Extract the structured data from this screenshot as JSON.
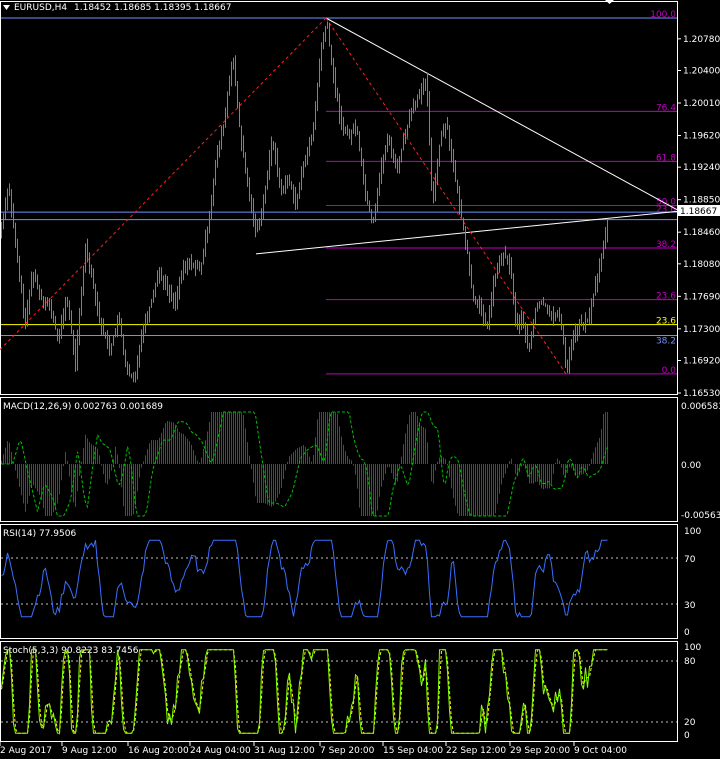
{
  "colors": {
    "background": "#000000",
    "grid": "#ffffff",
    "candle": "#3cb043",
    "fib_main": "#c000c0",
    "fib_label": "#c000c0",
    "trendline": "#ffffff",
    "blue_line": "#6f8fff",
    "yellow_line": "#ffff00",
    "red_dash": "#ff2020",
    "macd_hist": "#b02020",
    "macd_signal": "#00c000",
    "rsi_line": "#3a6fff",
    "stoch_main": "#80ff00",
    "stoch_signal": "#ffff00",
    "current_price_bg": "#ffffff",
    "current_price_fg": "#000000"
  },
  "header": {
    "symbol": "EURUSD,H4",
    "ohlc": "1.18452 1.18685 1.18395 1.18667"
  },
  "price_axis": {
    "ticks": [
      "1.20780",
      "1.20400",
      "1.20010",
      "1.19620",
      "1.19240",
      "1.18850",
      "1.18460",
      "1.18080",
      "1.17690",
      "1.17300",
      "1.16920",
      "1.16530"
    ],
    "current": "1.18667"
  },
  "fib_labels_upper": [
    "100.0",
    "76.4",
    "61.8",
    "50.0",
    "38.2"
  ],
  "fib_labels_lower": [
    "23.6",
    "0.0"
  ],
  "fib_mixed": [
    "23.6",
    "38.2"
  ],
  "fib_right_cluster": [
    "23.6"
  ],
  "macd": {
    "label": "MACD(12,26,9) 0.002763 0.001689",
    "ticks": [
      "0.006583",
      "0.00",
      "-0.005634"
    ]
  },
  "rsi": {
    "label": "RSI(14) 77.9506",
    "ticks": [
      "100",
      "70",
      "30",
      "0"
    ]
  },
  "stoch": {
    "label": "Stoch(5,3,3) 90.8223 83.7456",
    "ticks": [
      "100",
      "80",
      "20",
      "0"
    ]
  },
  "chart_data": {
    "type": "candlestick",
    "title": "EURUSD,H4",
    "time_labels": [
      "2 Aug 2017",
      "9 Aug 12:00",
      "16 Aug 20:00",
      "24 Aug 04:00",
      "31 Aug 12:00",
      "7 Sep 20:00",
      "15 Sep 04:00",
      "22 Sep 12:00",
      "29 Sep 20:00",
      "9 Oct 04:00"
    ],
    "ylim": [
      1.1653,
      1.2103
    ],
    "last_close": 1.18667,
    "path_points": [
      [
        0,
        1.1845
      ],
      [
        8,
        1.1905
      ],
      [
        15,
        1.183
      ],
      [
        25,
        1.1735
      ],
      [
        32,
        1.18
      ],
      [
        40,
        1.177
      ],
      [
        50,
        1.1755
      ],
      [
        58,
        1.1715
      ],
      [
        66,
        1.177
      ],
      [
        75,
        1.169
      ],
      [
        85,
        1.183
      ],
      [
        92,
        1.179
      ],
      [
        100,
        1.1735
      ],
      [
        110,
        1.1705
      ],
      [
        118,
        1.1745
      ],
      [
        126,
        1.168
      ],
      [
        134,
        1.1665
      ],
      [
        140,
        1.172
      ],
      [
        150,
        1.176
      ],
      [
        158,
        1.18
      ],
      [
        166,
        1.178
      ],
      [
        174,
        1.176
      ],
      [
        182,
        1.18
      ],
      [
        190,
        1.181
      ],
      [
        200,
        1.18
      ],
      [
        208,
        1.186
      ],
      [
        216,
        1.1935
      ],
      [
        224,
        1.198
      ],
      [
        232,
        1.206
      ],
      [
        240,
        1.196
      ],
      [
        248,
        1.1895
      ],
      [
        256,
        1.1845
      ],
      [
        264,
        1.189
      ],
      [
        272,
        1.196
      ],
      [
        280,
        1.1895
      ],
      [
        288,
        1.191
      ],
      [
        296,
        1.188
      ],
      [
        304,
        1.1935
      ],
      [
        312,
        1.196
      ],
      [
        320,
        1.206
      ],
      [
        326,
        1.21
      ],
      [
        332,
        1.204
      ],
      [
        340,
        1.198
      ],
      [
        348,
        1.196
      ],
      [
        356,
        1.1975
      ],
      [
        364,
        1.19
      ],
      [
        372,
        1.1855
      ],
      [
        380,
        1.192
      ],
      [
        388,
        1.196
      ],
      [
        396,
        1.192
      ],
      [
        404,
        1.196
      ],
      [
        412,
        1.2
      ],
      [
        420,
        1.201
      ],
      [
        426,
        1.203
      ],
      [
        432,
        1.188
      ],
      [
        440,
        1.196
      ],
      [
        446,
        1.198
      ],
      [
        452,
        1.193
      ],
      [
        460,
        1.187
      ],
      [
        466,
        1.183
      ],
      [
        472,
        1.177
      ],
      [
        478,
        1.176
      ],
      [
        486,
        1.173
      ],
      [
        494,
        1.179
      ],
      [
        502,
        1.182
      ],
      [
        510,
        1.1805
      ],
      [
        516,
        1.173
      ],
      [
        522,
        1.1745
      ],
      [
        528,
        1.17
      ],
      [
        536,
        1.176
      ],
      [
        544,
        1.176
      ],
      [
        552,
        1.1745
      ],
      [
        560,
        1.1745
      ],
      [
        566,
        1.168
      ],
      [
        572,
        1.172
      ],
      [
        580,
        1.1735
      ],
      [
        588,
        1.174
      ],
      [
        596,
        1.179
      ],
      [
        602,
        1.182
      ],
      [
        608,
        1.1867
      ]
    ],
    "fibonacci_upper": [
      {
        "level": "100.0",
        "price": 1.2103
      },
      {
        "level": "76.4",
        "price": 1.1991
      },
      {
        "level": "61.8",
        "price": 1.1931
      },
      {
        "level": "50.0",
        "price": 1.1878
      },
      {
        "level": "38.2",
        "price": 1.1827
      },
      {
        "level": "23.6",
        "price": 1.1765
      },
      {
        "level": "0.0",
        "price": 1.1676
      }
    ]
  }
}
